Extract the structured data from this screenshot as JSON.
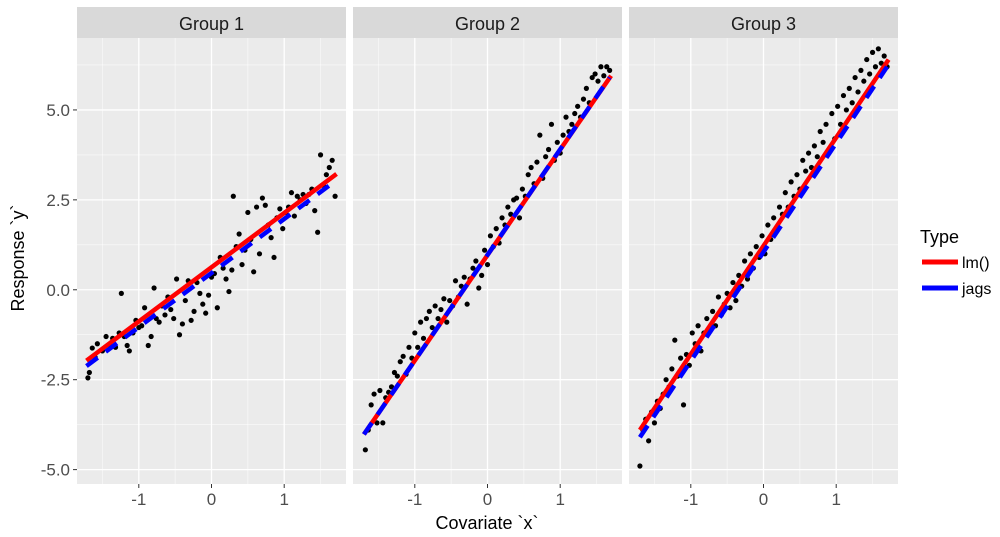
{
  "chart_data": {
    "type": "scatter",
    "facets": [
      {
        "name": "Group 1",
        "points": [
          [
            -1.7,
            -2.45
          ],
          [
            -1.68,
            -2.3
          ],
          [
            -1.64,
            -1.62
          ],
          [
            -1.6,
            -1.88
          ],
          [
            -1.57,
            -1.5
          ],
          [
            -1.5,
            -1.7
          ],
          [
            -1.45,
            -1.3
          ],
          [
            -1.4,
            -1.52
          ],
          [
            -1.36,
            -1.35
          ],
          [
            -1.32,
            -1.6
          ],
          [
            -1.27,
            -1.2
          ],
          [
            -1.24,
            -0.1
          ],
          [
            -1.2,
            -1.3
          ],
          [
            -1.16,
            -1.55
          ],
          [
            -1.13,
            -1.7
          ],
          [
            -1.08,
            -1.2
          ],
          [
            -1.04,
            -0.85
          ],
          [
            -1.0,
            -1.05
          ],
          [
            -0.96,
            -1.0
          ],
          [
            -0.92,
            -0.5
          ],
          [
            -0.87,
            -1.55
          ],
          [
            -0.83,
            -1.3
          ],
          [
            -0.79,
            0.05
          ],
          [
            -0.76,
            -0.8
          ],
          [
            -0.72,
            -0.9
          ],
          [
            -0.68,
            -0.45
          ],
          [
            -0.64,
            -0.7
          ],
          [
            -0.6,
            -0.2
          ],
          [
            -0.56,
            -0.55
          ],
          [
            -0.52,
            -0.8
          ],
          [
            -0.48,
            0.3
          ],
          [
            -0.44,
            -1.25
          ],
          [
            -0.4,
            -0.95
          ],
          [
            -0.36,
            -0.3
          ],
          [
            -0.32,
            0.25
          ],
          [
            -0.28,
            -0.85
          ],
          [
            -0.24,
            -0.6
          ],
          [
            -0.2,
            0.2
          ],
          [
            -0.16,
            -0.1
          ],
          [
            -0.12,
            -0.4
          ],
          [
            -0.08,
            -0.65
          ],
          [
            -0.04,
            -0.15
          ],
          [
            0.0,
            0.35
          ],
          [
            0.04,
            0.45
          ],
          [
            0.08,
            -0.5
          ],
          [
            0.12,
            0.9
          ],
          [
            0.16,
            0.6
          ],
          [
            0.2,
            0.3
          ],
          [
            0.24,
            -0.05
          ],
          [
            0.28,
            0.55
          ],
          [
            0.3,
            2.6
          ],
          [
            0.34,
            1.2
          ],
          [
            0.38,
            1.55
          ],
          [
            0.42,
            0.7
          ],
          [
            0.46,
            1.1
          ],
          [
            0.5,
            2.15
          ],
          [
            0.54,
            1.4
          ],
          [
            0.58,
            0.5
          ],
          [
            0.62,
            2.3
          ],
          [
            0.66,
            1.0
          ],
          [
            0.7,
            2.55
          ],
          [
            0.74,
            2.35
          ],
          [
            0.78,
            1.8
          ],
          [
            0.82,
            1.45
          ],
          [
            0.86,
            0.9
          ],
          [
            0.9,
            2.0
          ],
          [
            0.94,
            2.25
          ],
          [
            0.98,
            1.7
          ],
          [
            1.02,
            2.15
          ],
          [
            1.06,
            2.3
          ],
          [
            1.1,
            2.7
          ],
          [
            1.14,
            2.05
          ],
          [
            1.18,
            2.6
          ],
          [
            1.22,
            2.5
          ],
          [
            1.26,
            2.65
          ],
          [
            1.3,
            2.4
          ],
          [
            1.34,
            2.65
          ],
          [
            1.38,
            2.8
          ],
          [
            1.42,
            2.2
          ],
          [
            1.46,
            1.6
          ],
          [
            1.5,
            3.75
          ],
          [
            1.54,
            2.9
          ],
          [
            1.58,
            3.2
          ],
          [
            1.62,
            3.4
          ],
          [
            1.66,
            3.6
          ],
          [
            1.7,
            2.6
          ]
        ],
        "lm": [
          [
            -1.72,
            -1.97
          ],
          [
            1.72,
            3.22
          ]
        ],
        "jags": [
          [
            -1.72,
            -2.12
          ],
          [
            1.62,
            2.9
          ]
        ]
      },
      {
        "name": "Group 2",
        "points": [
          [
            -1.68,
            -4.45
          ],
          [
            -1.64,
            -3.9
          ],
          [
            -1.6,
            -3.2
          ],
          [
            -1.56,
            -2.9
          ],
          [
            -1.52,
            -3.7
          ],
          [
            -1.48,
            -2.8
          ],
          [
            -1.44,
            -3.7
          ],
          [
            -1.4,
            -3.0
          ],
          [
            -1.36,
            -2.85
          ],
          [
            -1.32,
            -2.7
          ],
          [
            -1.28,
            -2.3
          ],
          [
            -1.24,
            -2.4
          ],
          [
            -1.2,
            -2.0
          ],
          [
            -1.16,
            -1.85
          ],
          [
            -1.12,
            -2.35
          ],
          [
            -1.08,
            -1.6
          ],
          [
            -1.04,
            -1.9
          ],
          [
            -1.0,
            -1.2
          ],
          [
            -0.96,
            -1.6
          ],
          [
            -0.92,
            -0.9
          ],
          [
            -0.88,
            -1.35
          ],
          [
            -0.84,
            -0.8
          ],
          [
            -0.8,
            -0.6
          ],
          [
            -0.76,
            -1.05
          ],
          [
            -0.72,
            -0.45
          ],
          [
            -0.68,
            -0.8
          ],
          [
            -0.64,
            -0.55
          ],
          [
            -0.6,
            -0.25
          ],
          [
            -0.56,
            -0.9
          ],
          [
            -0.52,
            -0.3
          ],
          [
            -0.48,
            -0.45
          ],
          [
            -0.44,
            0.25
          ],
          [
            -0.4,
            -0.2
          ],
          [
            -0.36,
            0.1
          ],
          [
            -0.32,
            0.35
          ],
          [
            -0.28,
            -0.4
          ],
          [
            -0.24,
            0.3
          ],
          [
            -0.2,
            0.6
          ],
          [
            -0.16,
            0.8
          ],
          [
            -0.12,
            0.05
          ],
          [
            -0.08,
            0.4
          ],
          [
            -0.04,
            1.1
          ],
          [
            0.0,
            0.7
          ],
          [
            0.04,
            1.5
          ],
          [
            0.08,
            1.2
          ],
          [
            0.12,
            1.7
          ],
          [
            0.16,
            1.3
          ],
          [
            0.2,
            2.0
          ],
          [
            0.24,
            1.8
          ],
          [
            0.28,
            2.3
          ],
          [
            0.32,
            2.1
          ],
          [
            0.36,
            2.5
          ],
          [
            0.4,
            2.55
          ],
          [
            0.44,
            2.0
          ],
          [
            0.48,
            2.8
          ],
          [
            0.52,
            2.6
          ],
          [
            0.56,
            3.2
          ],
          [
            0.6,
            3.4
          ],
          [
            0.64,
            2.95
          ],
          [
            0.68,
            3.55
          ],
          [
            0.72,
            4.3
          ],
          [
            0.76,
            3.1
          ],
          [
            0.8,
            3.7
          ],
          [
            0.84,
            3.9
          ],
          [
            0.88,
            4.6
          ],
          [
            0.92,
            3.6
          ],
          [
            0.96,
            4.1
          ],
          [
            1.0,
            3.8
          ],
          [
            1.04,
            4.3
          ],
          [
            1.08,
            4.8
          ],
          [
            1.12,
            4.4
          ],
          [
            1.16,
            4.6
          ],
          [
            1.2,
            4.9
          ],
          [
            1.24,
            5.1
          ],
          [
            1.28,
            4.8
          ],
          [
            1.32,
            5.3
          ],
          [
            1.36,
            5.6
          ],
          [
            1.4,
            5.2
          ],
          [
            1.44,
            5.9
          ],
          [
            1.48,
            6.0
          ],
          [
            1.52,
            5.8
          ],
          [
            1.56,
            6.2
          ],
          [
            1.6,
            5.95
          ],
          [
            1.64,
            6.2
          ],
          [
            1.68,
            6.1
          ]
        ],
        "lm": [
          [
            -1.7,
            -4.02
          ],
          [
            1.7,
            5.95
          ]
        ],
        "jags": [
          [
            -1.7,
            -4.02
          ],
          [
            1.68,
            5.9
          ]
        ]
      },
      {
        "name": "Group 3",
        "points": [
          [
            -1.7,
            -4.9
          ],
          [
            -1.66,
            -3.9
          ],
          [
            -1.62,
            -3.6
          ],
          [
            -1.58,
            -4.2
          ],
          [
            -1.54,
            -3.4
          ],
          [
            -1.5,
            -3.7
          ],
          [
            -1.46,
            -3.1
          ],
          [
            -1.42,
            -3.3
          ],
          [
            -1.38,
            -2.9
          ],
          [
            -1.34,
            -2.5
          ],
          [
            -1.3,
            -2.7
          ],
          [
            -1.26,
            -2.2
          ],
          [
            -1.22,
            -1.4
          ],
          [
            -1.18,
            -2.4
          ],
          [
            -1.14,
            -1.9
          ],
          [
            -1.1,
            -3.2
          ],
          [
            -1.06,
            -1.8
          ],
          [
            -1.02,
            -2.1
          ],
          [
            -0.98,
            -1.2
          ],
          [
            -0.94,
            -1.5
          ],
          [
            -0.9,
            -1.0
          ],
          [
            -0.86,
            -1.7
          ],
          [
            -0.82,
            -1.2
          ],
          [
            -0.78,
            -0.8
          ],
          [
            -0.74,
            -1.1
          ],
          [
            -0.7,
            -0.6
          ],
          [
            -0.66,
            -1.0
          ],
          [
            -0.62,
            -0.2
          ],
          [
            -0.58,
            -0.7
          ],
          [
            -0.54,
            -0.4
          ],
          [
            -0.5,
            -0.1
          ],
          [
            -0.46,
            -0.5
          ],
          [
            -0.42,
            0.2
          ],
          [
            -0.38,
            -0.3
          ],
          [
            -0.34,
            0.4
          ],
          [
            -0.3,
            0.1
          ],
          [
            -0.26,
            0.8
          ],
          [
            -0.22,
            0.3
          ],
          [
            -0.18,
            1.0
          ],
          [
            -0.14,
            0.6
          ],
          [
            -0.1,
            1.2
          ],
          [
            -0.06,
            0.9
          ],
          [
            -0.02,
            1.5
          ],
          [
            0.02,
            1.0
          ],
          [
            0.06,
            1.8
          ],
          [
            0.1,
            1.4
          ],
          [
            0.14,
            2.0
          ],
          [
            0.18,
            1.7
          ],
          [
            0.22,
            2.3
          ],
          [
            0.26,
            2.1
          ],
          [
            0.3,
            2.7
          ],
          [
            0.34,
            2.3
          ],
          [
            0.38,
            3.0
          ],
          [
            0.42,
            2.6
          ],
          [
            0.46,
            3.2
          ],
          [
            0.5,
            2.8
          ],
          [
            0.54,
            3.6
          ],
          [
            0.58,
            3.3
          ],
          [
            0.62,
            3.8
          ],
          [
            0.66,
            3.4
          ],
          [
            0.7,
            4.0
          ],
          [
            0.74,
            3.7
          ],
          [
            0.78,
            4.4
          ],
          [
            0.82,
            4.1
          ],
          [
            0.86,
            4.6
          ],
          [
            0.9,
            3.8
          ],
          [
            0.94,
            4.9
          ],
          [
            0.98,
            4.2
          ],
          [
            1.02,
            5.1
          ],
          [
            1.06,
            4.6
          ],
          [
            1.1,
            5.4
          ],
          [
            1.14,
            5.0
          ],
          [
            1.18,
            5.6
          ],
          [
            1.22,
            5.2
          ],
          [
            1.26,
            5.9
          ],
          [
            1.3,
            5.5
          ],
          [
            1.34,
            6.1
          ],
          [
            1.38,
            5.8
          ],
          [
            1.42,
            6.4
          ],
          [
            1.46,
            6.0
          ],
          [
            1.5,
            6.6
          ],
          [
            1.54,
            6.2
          ],
          [
            1.58,
            6.7
          ],
          [
            1.62,
            6.3
          ],
          [
            1.66,
            6.5
          ],
          [
            1.7,
            6.2
          ]
        ],
        "lm": [
          [
            -1.7,
            -3.9
          ],
          [
            1.72,
            6.4
          ]
        ],
        "jags": [
          [
            -1.7,
            -4.1
          ],
          [
            1.7,
            6.2
          ]
        ]
      }
    ],
    "xlabel": "Covariate `x`",
    "ylabel": "Response `y`",
    "xlim": [
      -1.85,
      1.85
    ],
    "ylim": [
      -5.4,
      7.0
    ],
    "xticks": [
      -1,
      0,
      1
    ],
    "xtick_labels": [
      "-1",
      "0",
      "1"
    ],
    "yticks": [
      -5,
      -2.5,
      0,
      2.5,
      5
    ],
    "ytick_labels": [
      "-5.0",
      "-2.5",
      "0.0",
      "2.5",
      "5.0"
    ],
    "grid": true,
    "legend": {
      "title": "Type",
      "position": "right",
      "entries": [
        {
          "label": "lm()",
          "color": "#ff0000"
        },
        {
          "label": "jags",
          "color": "#0000ff"
        }
      ]
    },
    "colors": {
      "panel": "#ebebeb",
      "strip": "#d9d9d9",
      "grid_major": "#ffffff",
      "points": "#000000"
    }
  }
}
